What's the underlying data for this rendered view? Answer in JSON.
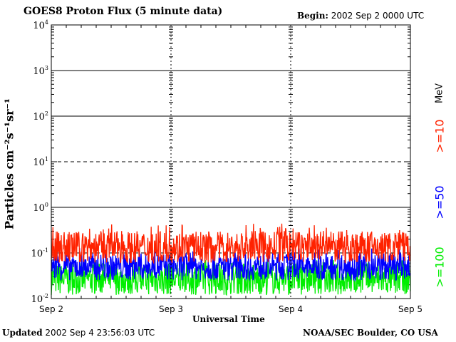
{
  "header": {
    "title": "GOES8 Proton Flux (5 minute data)",
    "begin_label": "Begin:",
    "begin_value": "2002 Sep 2 0000 UTC"
  },
  "footer": {
    "updated_label": "Updated",
    "updated_value": "2002 Sep  4 23:56:03 UTC",
    "credit": "NOAA/SEC Boulder, CO USA"
  },
  "chart_data": {
    "type": "line",
    "xlabel": "Universal Time",
    "ylabel": "Particles cm⁻²s⁻¹sr⁻¹",
    "y_scale": "log",
    "ylim": [
      0.01,
      10000
    ],
    "y_ticks": [
      {
        "base": "10",
        "exp": "-2"
      },
      {
        "base": "10",
        "exp": "-1"
      },
      {
        "base": "10",
        "exp": "0"
      },
      {
        "base": "10",
        "exp": "1"
      },
      {
        "base": "10",
        "exp": "2"
      },
      {
        "base": "10",
        "exp": "3"
      },
      {
        "base": "10",
        "exp": "4"
      }
    ],
    "x_ticks": [
      "Sep 2",
      "Sep 3",
      "Sep 4",
      "Sep 5"
    ],
    "xlim": [
      "2002-09-02 00:00",
      "2002-09-05 00:00"
    ],
    "units_label": "MeV",
    "series": [
      {
        "name": ">=10",
        "color": "#ff2200",
        "typical_range": [
          0.06,
          0.3
        ],
        "peak": 0.45
      },
      {
        "name": ">=50",
        "color": "#0000ff",
        "typical_range": [
          0.025,
          0.1
        ],
        "peak": 0.13
      },
      {
        "name": ">=100",
        "color": "#00ee00",
        "typical_range": [
          0.012,
          0.06
        ],
        "peak": 0.07
      }
    ],
    "grid": "solid at 10^0, 10^2, 10^3; dashed at 10^1, 10^-1",
    "legend": "right, vertical"
  }
}
